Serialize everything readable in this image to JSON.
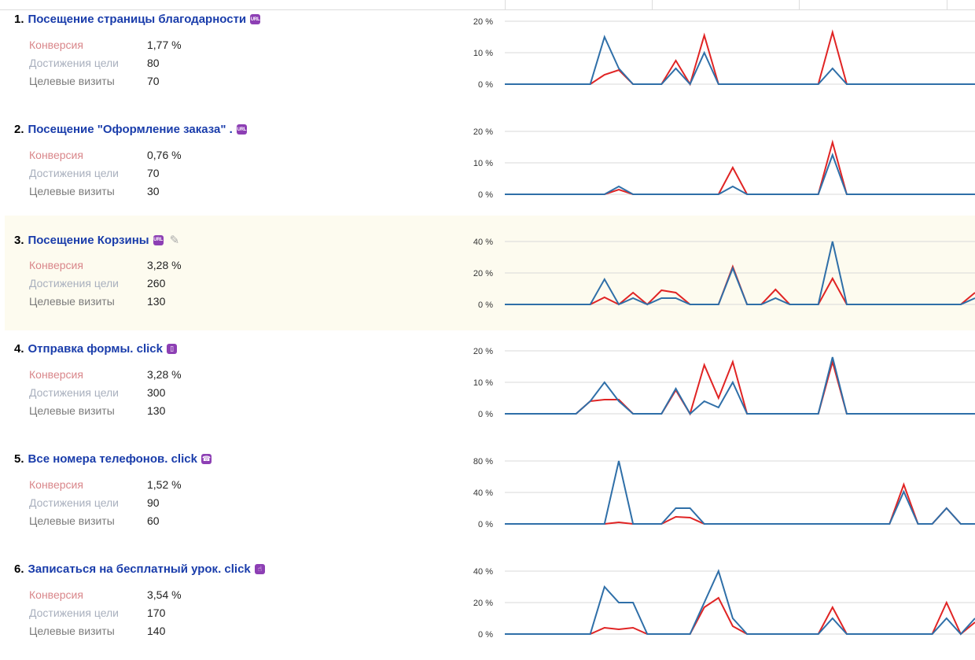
{
  "labels": {
    "conversion": "Конверсия",
    "reaches": "Достижения цели",
    "visits": "Целевые визиты"
  },
  "colors": {
    "red": "#e02424",
    "blue": "#2f6fa8",
    "grid": "#d9d9d9",
    "link": "#1a3dab",
    "badge": "#8d3fb4"
  },
  "goals": [
    {
      "num": "1.",
      "title": "Посещение страницы благодарности",
      "icon": "url-badge-icon",
      "icon_text": "URL",
      "edit": false,
      "conversion": "1,77 %",
      "reaches": "80",
      "visits": "70",
      "highlight": false
    },
    {
      "num": "2.",
      "title": "Посещение \"Оформление заказа\" .",
      "icon": "url-badge-icon",
      "icon_text": "URL",
      "edit": false,
      "conversion": "0,76 %",
      "reaches": "70",
      "visits": "30",
      "highlight": false
    },
    {
      "num": "3.",
      "title": "Посещение Корзины",
      "icon": "url-badge-icon",
      "icon_text": "URL",
      "edit": true,
      "conversion": "3,28 %",
      "reaches": "260",
      "visits": "130",
      "highlight": true
    },
    {
      "num": "4.",
      "title": "Отправка формы. click",
      "icon": "form-icon",
      "icon_text": "",
      "edit": false,
      "conversion": "3,28 %",
      "reaches": "300",
      "visits": "130",
      "highlight": false
    },
    {
      "num": "5.",
      "title": "Все номера телефонов. click",
      "icon": "phone-icon",
      "icon_text": "",
      "edit": false,
      "conversion": "1,52 %",
      "reaches": "90",
      "visits": "60",
      "highlight": false
    },
    {
      "num": "6.",
      "title": "Записаться на бесплатный урок. click",
      "icon": "click-hand-icon",
      "icon_text": "",
      "edit": false,
      "conversion": "3,54 %",
      "reaches": "170",
      "visits": "140",
      "highlight": false
    }
  ],
  "chart_data": [
    {
      "type": "line",
      "yticks": [
        "0 %",
        "10 %",
        "20 %"
      ],
      "ylim": [
        0,
        20
      ],
      "x": [
        0,
        1,
        2,
        3,
        4,
        5,
        6,
        7,
        8,
        9,
        10,
        11,
        12,
        13,
        14,
        15,
        16,
        17,
        18,
        19,
        20,
        21,
        22,
        23,
        24,
        25,
        26,
        27,
        28,
        29,
        30,
        31,
        32,
        33
      ],
      "series": [
        {
          "color": "#e02424",
          "values": [
            0,
            0,
            0,
            0,
            0,
            0,
            0,
            3,
            4.5,
            0,
            0,
            0,
            7.5,
            0,
            15.5,
            0,
            0,
            0,
            0,
            0,
            0,
            0,
            0,
            16.5,
            0,
            0,
            0,
            0,
            0,
            0,
            0,
            0,
            0,
            0
          ]
        },
        {
          "color": "#2f6fa8",
          "values": [
            0,
            0,
            0,
            0,
            0,
            0,
            0,
            15,
            5,
            0,
            0,
            0,
            5,
            0,
            10,
            0,
            0,
            0,
            0,
            0,
            0,
            0,
            0,
            5,
            0,
            0,
            0,
            0,
            0,
            0,
            0,
            0,
            0,
            0
          ]
        }
      ]
    },
    {
      "type": "line",
      "yticks": [
        "0 %",
        "10 %",
        "20 %"
      ],
      "ylim": [
        0,
        20
      ],
      "x": [
        0,
        1,
        2,
        3,
        4,
        5,
        6,
        7,
        8,
        9,
        10,
        11,
        12,
        13,
        14,
        15,
        16,
        17,
        18,
        19,
        20,
        21,
        22,
        23,
        24,
        25,
        26,
        27,
        28,
        29,
        30,
        31,
        32,
        33
      ],
      "series": [
        {
          "color": "#e02424",
          "values": [
            0,
            0,
            0,
            0,
            0,
            0,
            0,
            0,
            1.5,
            0,
            0,
            0,
            0,
            0,
            0,
            0,
            8.5,
            0,
            0,
            0,
            0,
            0,
            0,
            16.5,
            0,
            0,
            0,
            0,
            0,
            0,
            0,
            0,
            0,
            0
          ]
        },
        {
          "color": "#2f6fa8",
          "values": [
            0,
            0,
            0,
            0,
            0,
            0,
            0,
            0,
            2.5,
            0,
            0,
            0,
            0,
            0,
            0,
            0,
            2.5,
            0,
            0,
            0,
            0,
            0,
            0,
            12.5,
            0,
            0,
            0,
            0,
            0,
            0,
            0,
            0,
            0,
            0
          ]
        }
      ]
    },
    {
      "type": "line",
      "yticks": [
        "0 %",
        "20 %",
        "40 %"
      ],
      "ylim": [
        0,
        40
      ],
      "x": [
        0,
        1,
        2,
        3,
        4,
        5,
        6,
        7,
        8,
        9,
        10,
        11,
        12,
        13,
        14,
        15,
        16,
        17,
        18,
        19,
        20,
        21,
        22,
        23,
        24,
        25,
        26,
        27,
        28,
        29,
        30,
        31,
        32,
        33
      ],
      "series": [
        {
          "color": "#e02424",
          "values": [
            0,
            0,
            0,
            0,
            0,
            0,
            0,
            4.5,
            0,
            7.5,
            0,
            9,
            7.5,
            0,
            0,
            0,
            24,
            0,
            0,
            9.5,
            0,
            0,
            0,
            16.5,
            0,
            0,
            0,
            0,
            0,
            0,
            0,
            0,
            0,
            7.5
          ]
        },
        {
          "color": "#2f6fa8",
          "values": [
            0,
            0,
            0,
            0,
            0,
            0,
            0,
            16,
            0,
            4,
            0,
            4,
            4,
            0,
            0,
            0,
            23,
            0,
            0,
            4,
            0,
            0,
            0,
            40,
            0,
            0,
            0,
            0,
            0,
            0,
            0,
            0,
            0,
            4
          ]
        }
      ]
    },
    {
      "type": "line",
      "yticks": [
        "0 %",
        "10 %",
        "20 %"
      ],
      "ylim": [
        0,
        20
      ],
      "x": [
        0,
        1,
        2,
        3,
        4,
        5,
        6,
        7,
        8,
        9,
        10,
        11,
        12,
        13,
        14,
        15,
        16,
        17,
        18,
        19,
        20,
        21,
        22,
        23,
        24,
        25,
        26,
        27,
        28,
        29,
        30,
        31,
        32,
        33
      ],
      "series": [
        {
          "color": "#e02424",
          "values": [
            0,
            0,
            0,
            0,
            0,
            0,
            4,
            4.5,
            4.5,
            0,
            0,
            0,
            7.5,
            0,
            15.5,
            5,
            16.5,
            0,
            0,
            0,
            0,
            0,
            0,
            16.5,
            0,
            0,
            0,
            0,
            0,
            0,
            0,
            0,
            0,
            0
          ]
        },
        {
          "color": "#2f6fa8",
          "values": [
            0,
            0,
            0,
            0,
            0,
            0,
            4,
            10,
            4,
            0,
            0,
            0,
            8,
            0,
            4,
            2,
            10,
            0,
            0,
            0,
            0,
            0,
            0,
            18,
            0,
            0,
            0,
            0,
            0,
            0,
            0,
            0,
            0,
            0
          ]
        }
      ]
    },
    {
      "type": "line",
      "yticks": [
        "0 %",
        "40 %",
        "80 %"
      ],
      "ylim": [
        0,
        80
      ],
      "x": [
        0,
        1,
        2,
        3,
        4,
        5,
        6,
        7,
        8,
        9,
        10,
        11,
        12,
        13,
        14,
        15,
        16,
        17,
        18,
        19,
        20,
        21,
        22,
        23,
        24,
        25,
        26,
        27,
        28,
        29,
        30,
        31,
        32,
        33
      ],
      "series": [
        {
          "color": "#e02424",
          "values": [
            0,
            0,
            0,
            0,
            0,
            0,
            0,
            0,
            2,
            0,
            0,
            0,
            9,
            8,
            0,
            0,
            0,
            0,
            0,
            0,
            0,
            0,
            0,
            0,
            0,
            0,
            0,
            0,
            50,
            0,
            0,
            20,
            0,
            0
          ]
        },
        {
          "color": "#2f6fa8",
          "values": [
            0,
            0,
            0,
            0,
            0,
            0,
            0,
            0,
            80,
            0,
            0,
            0,
            20,
            20,
            0,
            0,
            0,
            0,
            0,
            0,
            0,
            0,
            0,
            0,
            0,
            0,
            0,
            0,
            41,
            0,
            0,
            20,
            0,
            0
          ]
        }
      ]
    },
    {
      "type": "line",
      "yticks": [
        "0 %",
        "20 %",
        "40 %"
      ],
      "ylim": [
        0,
        40
      ],
      "x": [
        0,
        1,
        2,
        3,
        4,
        5,
        6,
        7,
        8,
        9,
        10,
        11,
        12,
        13,
        14,
        15,
        16,
        17,
        18,
        19,
        20,
        21,
        22,
        23,
        24,
        25,
        26,
        27,
        28,
        29,
        30,
        31,
        32,
        33
      ],
      "series": [
        {
          "color": "#e02424",
          "values": [
            0,
            0,
            0,
            0,
            0,
            0,
            0,
            4,
            3,
            4,
            0,
            0,
            0,
            0,
            17,
            23,
            5,
            0,
            0,
            0,
            0,
            0,
            0,
            17,
            0,
            0,
            0,
            0,
            0,
            0,
            0,
            20,
            0,
            7.5
          ]
        },
        {
          "color": "#2f6fa8",
          "values": [
            0,
            0,
            0,
            0,
            0,
            0,
            0,
            30,
            20,
            20,
            0,
            0,
            0,
            0,
            20,
            40,
            10,
            0,
            0,
            0,
            0,
            0,
            0,
            10,
            0,
            0,
            0,
            0,
            0,
            0,
            0,
            10,
            0,
            10
          ]
        }
      ]
    }
  ]
}
